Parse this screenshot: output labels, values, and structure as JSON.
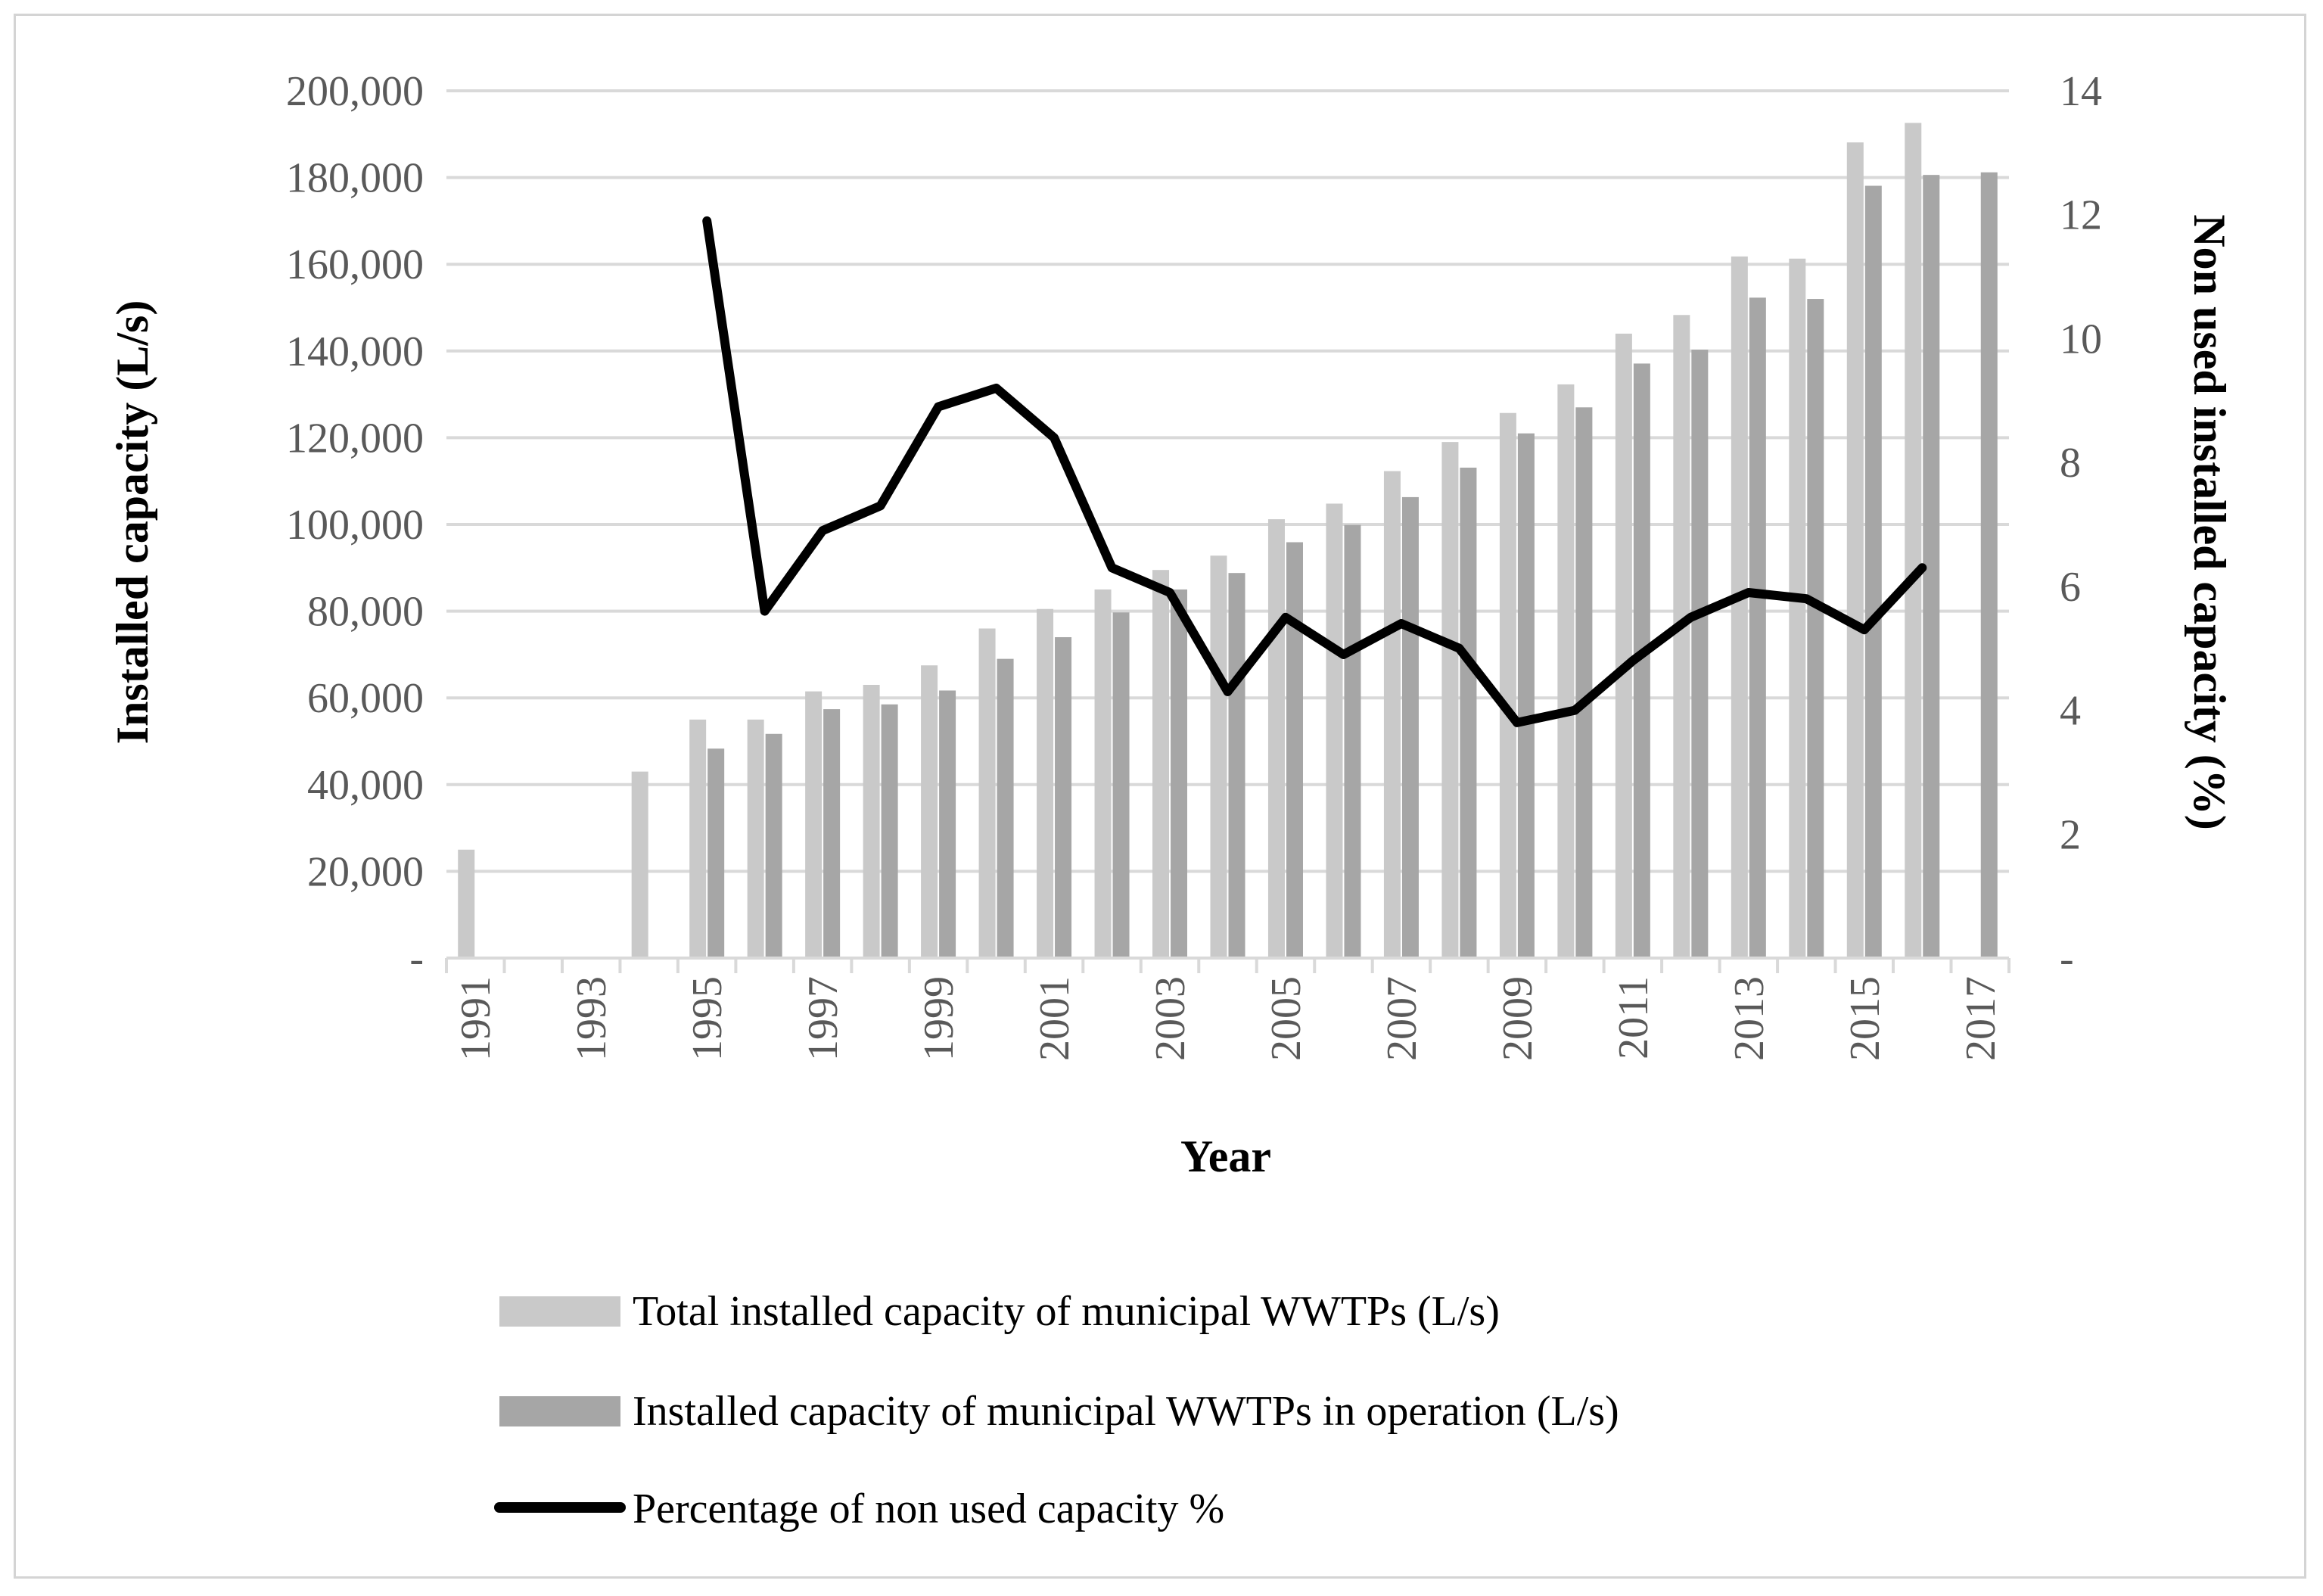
{
  "chart_data": {
    "type": "bar",
    "title": "",
    "xlabel": "Year",
    "ylabel": "Installed capacity (L/s)",
    "y2label": "Non used  installed capacity (%)",
    "ylim": [
      0,
      200000
    ],
    "y2lim": [
      0,
      14
    ],
    "yticks": [
      "-",
      "20,000",
      "40,000",
      "60,000",
      "80,000",
      "100,000",
      "120,000",
      "140,000",
      "160,000",
      "180,000",
      "200,000"
    ],
    "y2ticks": [
      "-",
      "2",
      "4",
      "6",
      "8",
      "10",
      "12",
      "14"
    ],
    "categories": [
      1991,
      1992,
      1993,
      1994,
      1995,
      1996,
      1997,
      1998,
      1999,
      2000,
      2001,
      2002,
      2003,
      2004,
      2005,
      2006,
      2007,
      2008,
      2009,
      2010,
      2011,
      2012,
      2013,
      2014,
      2015,
      2016,
      2017
    ],
    "xtick_labels": [
      "1991",
      "1993",
      "1995",
      "1997",
      "1999",
      "2001",
      "2003",
      "2005",
      "2007",
      "2009",
      "2011",
      "2013",
      "2015",
      "2017"
    ],
    "grid": true,
    "legend_position": "bottom",
    "series": [
      {
        "name": "Total installed capacity of municipal WWTPs (L/s)",
        "kind": "bar",
        "axis": "left",
        "color": "#c9c9c9",
        "values": [
          25000,
          null,
          null,
          43000,
          55000,
          55000,
          61500,
          63000,
          67500,
          76000,
          80500,
          85000,
          89500,
          92800,
          101200,
          104800,
          112300,
          119000,
          125700,
          132300,
          144000,
          148300,
          161800,
          161300,
          188100,
          192600,
          null
        ]
      },
      {
        "name": "Installed capacity of municipal WWTPs in operation (L/s)",
        "kind": "bar",
        "axis": "left",
        "color": "#a6a6a6",
        "values": [
          null,
          null,
          null,
          null,
          48300,
          51700,
          57400,
          58500,
          61700,
          69000,
          74000,
          79700,
          85000,
          88800,
          95900,
          99900,
          106300,
          113100,
          121000,
          127000,
          137100,
          140300,
          152300,
          152000,
          178100,
          180600,
          181200
        ]
      },
      {
        "name": "Percentage of non used capacity %",
        "kind": "line",
        "axis": "right",
        "color": "#000000",
        "values": [
          null,
          null,
          null,
          null,
          11.9,
          5.6,
          6.9,
          7.3,
          8.9,
          9.2,
          8.4,
          6.3,
          5.9,
          4.3,
          5.5,
          4.9,
          5.4,
          5.0,
          3.8,
          4.0,
          4.8,
          5.5,
          5.9,
          5.8,
          5.3,
          6.3,
          null
        ]
      }
    ]
  }
}
